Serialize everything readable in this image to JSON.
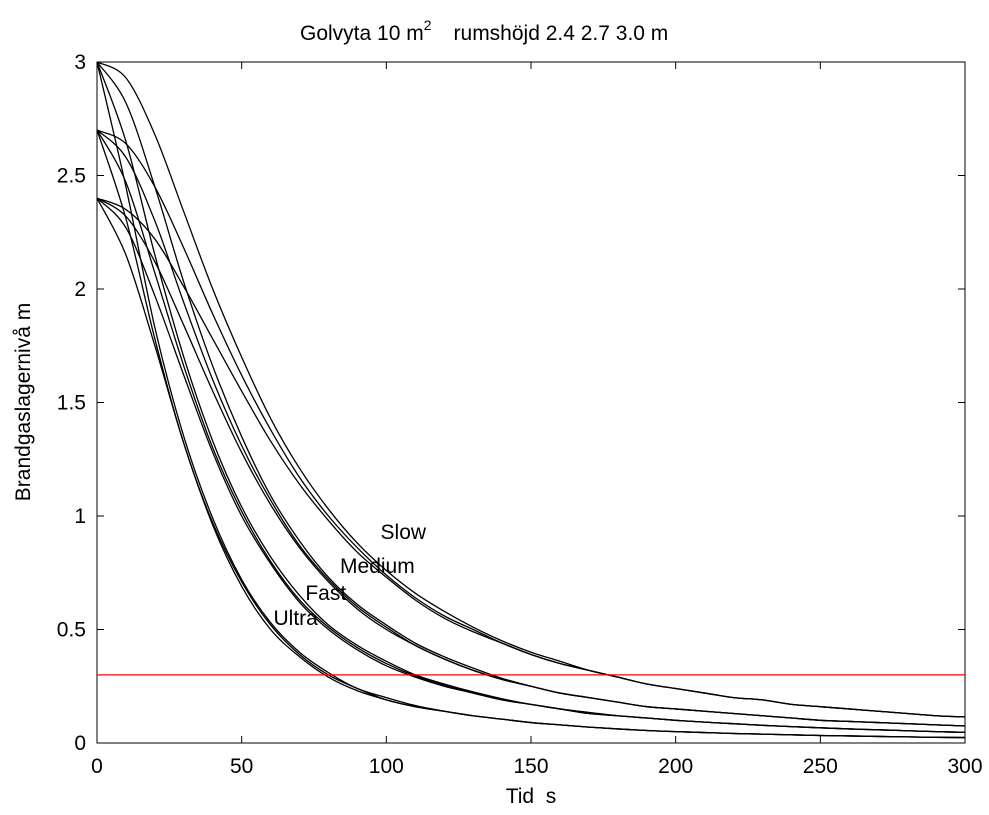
{
  "chart_data": {
    "type": "line",
    "title": "Golvyta 10 m",
    "title_superscript": "2",
    "subtitle": "rumshöjd 2.4 2.7 3.0 m",
    "xlabel": "Tid  s",
    "ylabel": "Brandgaslagernivå m",
    "xlim": [
      0,
      300
    ],
    "ylim": [
      0,
      3
    ],
    "xticks": [
      "0",
      "50",
      "100",
      "150",
      "200",
      "250",
      "300"
    ],
    "yticks": [
      "0",
      "0.5",
      "1",
      "1.5",
      "2",
      "2.5",
      "3"
    ],
    "grid": false,
    "legend": "none",
    "curve_color": "#000000",
    "reference_line": {
      "y": 0.3,
      "color": "#ff0000"
    },
    "x": [
      0,
      10,
      20,
      30,
      40,
      50,
      60,
      70,
      80,
      90,
      100,
      110,
      120,
      130,
      140,
      150,
      160,
      170,
      180,
      190,
      200,
      210,
      220,
      230,
      240,
      250,
      260,
      270,
      280,
      290,
      300
    ],
    "series": [
      {
        "group": "Ultra",
        "height": 2.4,
        "values": [
          2.4,
          2.15,
          1.75,
          1.32,
          0.96,
          0.69,
          0.5,
          0.38,
          0.29,
          0.23,
          0.19,
          0.16,
          0.14,
          0.12,
          0.105,
          0.09,
          0.08,
          0.07,
          0.062,
          0.055,
          0.05,
          0.046,
          0.042,
          0.039,
          0.036,
          0.033,
          0.031,
          0.029,
          0.027,
          0.025,
          0.024
        ]
      },
      {
        "group": "Ultra",
        "height": 2.7,
        "values": [
          2.7,
          2.31,
          1.78,
          1.32,
          0.97,
          0.71,
          0.52,
          0.39,
          0.3,
          0.24,
          0.19,
          0.16,
          0.14,
          0.12,
          0.105,
          0.09,
          0.08,
          0.07,
          0.062,
          0.055,
          0.05,
          0.046,
          0.042,
          0.039,
          0.036,
          0.033,
          0.031,
          0.029,
          0.027,
          0.025,
          0.024
        ]
      },
      {
        "group": "Ultra",
        "height": 3.0,
        "values": [
          3.0,
          2.45,
          1.83,
          1.35,
          0.99,
          0.72,
          0.53,
          0.4,
          0.31,
          0.24,
          0.2,
          0.165,
          0.14,
          0.12,
          0.105,
          0.09,
          0.08,
          0.07,
          0.062,
          0.055,
          0.05,
          0.046,
          0.042,
          0.039,
          0.036,
          0.033,
          0.031,
          0.029,
          0.027,
          0.025,
          0.024
        ]
      },
      {
        "group": "Fast",
        "height": 2.4,
        "values": [
          2.4,
          2.27,
          1.97,
          1.62,
          1.28,
          1.0,
          0.79,
          0.62,
          0.5,
          0.41,
          0.34,
          0.29,
          0.25,
          0.22,
          0.19,
          0.17,
          0.15,
          0.13,
          0.12,
          0.11,
          0.1,
          0.092,
          0.085,
          0.078,
          0.072,
          0.067,
          0.062,
          0.058,
          0.054,
          0.05,
          0.047
        ]
      },
      {
        "group": "Fast",
        "height": 2.7,
        "values": [
          2.7,
          2.47,
          2.07,
          1.66,
          1.3,
          1.02,
          0.8,
          0.63,
          0.51,
          0.42,
          0.35,
          0.295,
          0.255,
          0.22,
          0.19,
          0.17,
          0.15,
          0.13,
          0.12,
          0.11,
          0.1,
          0.092,
          0.085,
          0.078,
          0.072,
          0.067,
          0.062,
          0.058,
          0.054,
          0.05,
          0.047
        ]
      },
      {
        "group": "Fast",
        "height": 3.0,
        "values": [
          3.0,
          2.65,
          2.15,
          1.7,
          1.33,
          1.04,
          0.82,
          0.65,
          0.52,
          0.43,
          0.36,
          0.3,
          0.26,
          0.225,
          0.195,
          0.17,
          0.15,
          0.135,
          0.12,
          0.11,
          0.1,
          0.092,
          0.085,
          0.078,
          0.072,
          0.067,
          0.062,
          0.058,
          0.054,
          0.05,
          0.047
        ]
      },
      {
        "group": "Medium",
        "height": 2.4,
        "values": [
          2.4,
          2.32,
          2.12,
          1.84,
          1.55,
          1.28,
          1.05,
          0.86,
          0.71,
          0.59,
          0.5,
          0.43,
          0.37,
          0.32,
          0.28,
          0.25,
          0.22,
          0.2,
          0.18,
          0.16,
          0.15,
          0.14,
          0.13,
          0.12,
          0.11,
          0.1,
          0.095,
          0.09,
          0.085,
          0.08,
          0.075
        ]
      },
      {
        "group": "Medium",
        "height": 2.7,
        "values": [
          2.7,
          2.58,
          2.3,
          1.94,
          1.6,
          1.31,
          1.07,
          0.87,
          0.72,
          0.6,
          0.51,
          0.43,
          0.37,
          0.32,
          0.28,
          0.25,
          0.22,
          0.2,
          0.18,
          0.16,
          0.15,
          0.14,
          0.13,
          0.12,
          0.11,
          0.1,
          0.095,
          0.09,
          0.085,
          0.08,
          0.075
        ]
      },
      {
        "group": "Medium",
        "height": 3.0,
        "values": [
          3.0,
          2.82,
          2.45,
          2.03,
          1.66,
          1.35,
          1.09,
          0.89,
          0.73,
          0.61,
          0.52,
          0.44,
          0.38,
          0.33,
          0.285,
          0.25,
          0.22,
          0.2,
          0.18,
          0.16,
          0.15,
          0.14,
          0.13,
          0.12,
          0.11,
          0.1,
          0.095,
          0.09,
          0.085,
          0.08,
          0.075
        ]
      },
      {
        "group": "Slow",
        "height": 2.4,
        "values": [
          2.4,
          2.35,
          2.22,
          2.01,
          1.78,
          1.55,
          1.33,
          1.14,
          0.98,
          0.84,
          0.73,
          0.63,
          0.55,
          0.49,
          0.44,
          0.39,
          0.35,
          0.32,
          0.29,
          0.26,
          0.24,
          0.22,
          0.2,
          0.19,
          0.17,
          0.16,
          0.15,
          0.14,
          0.13,
          0.12,
          0.115
        ]
      },
      {
        "group": "Slow",
        "height": 2.7,
        "values": [
          2.7,
          2.64,
          2.45,
          2.18,
          1.89,
          1.62,
          1.38,
          1.17,
          1.0,
          0.86,
          0.74,
          0.64,
          0.56,
          0.5,
          0.44,
          0.39,
          0.35,
          0.32,
          0.29,
          0.26,
          0.24,
          0.22,
          0.2,
          0.19,
          0.17,
          0.16,
          0.15,
          0.14,
          0.13,
          0.12,
          0.115
        ]
      },
      {
        "group": "Slow",
        "height": 3.0,
        "values": [
          3.0,
          2.93,
          2.68,
          2.34,
          2.0,
          1.7,
          1.43,
          1.21,
          1.03,
          0.88,
          0.76,
          0.66,
          0.58,
          0.51,
          0.45,
          0.4,
          0.36,
          0.32,
          0.29,
          0.26,
          0.24,
          0.22,
          0.2,
          0.19,
          0.17,
          0.16,
          0.15,
          0.14,
          0.13,
          0.12,
          0.115
        ]
      }
    ],
    "annotations": [
      {
        "text": "Slow",
        "x": 98,
        "y": 0.93
      },
      {
        "text": "Medium",
        "x": 84,
        "y": 0.78
      },
      {
        "text": "Fast",
        "x": 72,
        "y": 0.66
      },
      {
        "text": "Ultra",
        "x": 61,
        "y": 0.55
      }
    ]
  }
}
